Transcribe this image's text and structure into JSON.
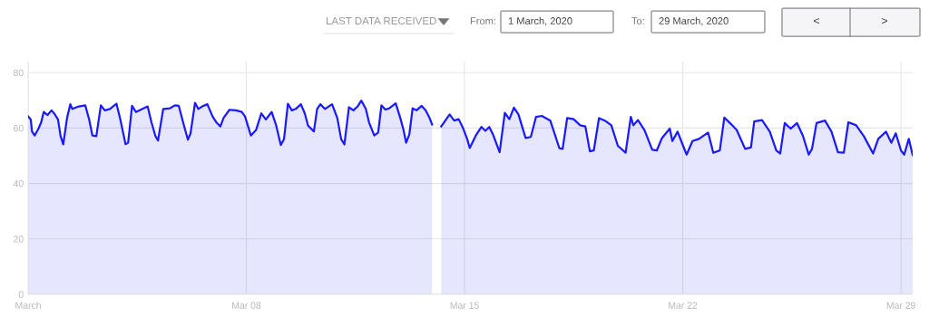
{
  "chart_data": {
    "type": "area",
    "annotations": [
      "LAST DATA RECEIVED",
      "From:",
      "1 March, 2020",
      "To:",
      "29 March, 2020",
      "<",
      ">"
    ],
    "x": [
      "2020-03-01T00:00",
      "2020-03-01T02:00",
      "2020-03-01T03:00",
      "2020-03-01T05:00",
      "2020-03-01T08:00",
      "2020-03-01T10:00",
      "2020-03-01T12:00",
      "2020-03-01T15:00",
      "2020-03-01T18:00",
      "2020-03-01T20:00",
      "2020-03-01T23:00",
      "2020-03-02T01:00",
      "2020-03-02T03:00",
      "2020-03-02T06:00",
      "2020-03-02T08:30",
      "2020-03-02T10:00",
      "2020-03-02T15:00",
      "2020-03-02T20:00",
      "2020-03-02T23:00",
      "2020-03-03T01:30",
      "2020-03-03T04:30",
      "2020-03-03T08:00",
      "2020-03-03T11:00",
      "2020-03-03T15:00",
      "2020-03-03T20:00",
      "2020-03-03T23:00",
      "2020-03-04T03:00",
      "2020-03-04T05:00",
      "2020-03-04T08:00",
      "2020-03-04T11:00",
      "2020-03-04T16:00",
      "2020-03-04T20:00",
      "2020-03-04T23:00",
      "2020-03-05T02:00",
      "2020-03-05T04:00",
      "2020-03-05T08:00",
      "2020-03-05T13:00",
      "2020-03-05T17:00",
      "2020-03-05T20:00",
      "2020-03-06T00:00",
      "2020-03-06T03:00",
      "2020-03-06T05:00",
      "2020-03-06T08:30",
      "2020-03-06T11:00",
      "2020-03-06T14:00",
      "2020-03-06T18:00",
      "2020-03-06T22:00",
      "2020-03-07T01:00",
      "2020-03-07T04:00",
      "2020-03-07T06:30",
      "2020-03-07T11:00",
      "2020-03-07T16:00",
      "2020-03-07T20:30",
      "2020-03-07T23:00",
      "2020-03-08T03:30",
      "2020-03-08T07:30",
      "2020-03-08T11:30",
      "2020-03-08T15:00",
      "2020-03-08T19:30",
      "2020-03-08T23:00",
      "2020-03-09T02:30",
      "2020-03-09T05:00",
      "2020-03-09T08:00",
      "2020-03-09T11:00",
      "2020-03-09T14:00",
      "2020-03-09T18:00",
      "2020-03-09T21:00",
      "2020-03-09T23:30",
      "2020-03-10T04:00",
      "2020-03-10T06:30",
      "2020-03-10T09:00",
      "2020-03-10T12:30",
      "2020-03-10T18:00",
      "2020-03-10T22:00",
      "2020-03-11T01:00",
      "2020-03-11T03:30",
      "2020-03-11T07:00",
      "2020-03-11T10:30",
      "2020-03-11T14:00",
      "2020-03-11T16:30",
      "2020-03-11T20:00",
      "2020-03-11T22:30",
      "2020-03-12T02:30",
      "2020-03-12T05:30",
      "2020-03-12T08:00",
      "2020-03-12T11:00",
      "2020-03-12T14:00",
      "2020-03-12T19:00",
      "2020-03-12T22:30",
      "2020-03-13T01:00",
      "2020-03-13T03:00",
      "2020-03-13T05:30",
      "2020-03-13T08:00",
      "2020-03-13T11:00",
      "2020-03-13T15:00",
      "2020-03-13T18:00",
      "2020-03-13T21:00",
      "2020-03-13T23:00",
      "2020-03-14T02:00",
      "2020-03-14T06:00",
      "2020-03-14T12:30",
      "2020-03-14T16:00",
      "2020-03-14T19:30",
      "2020-03-14T23:00",
      "2020-03-15T02:00",
      "2020-03-15T04:00",
      "2020-03-15T09:00",
      "2020-03-15T13:00",
      "2020-03-15T16:00",
      "2020-03-15T19:00",
      "2020-03-15T22:00",
      "2020-03-16T03:00",
      "2020-03-16T07:00",
      "2020-03-16T10:30",
      "2020-03-16T14:00",
      "2020-03-16T17:30",
      "2020-03-16T23:00",
      "2020-03-17T03:00",
      "2020-03-17T07:00",
      "2020-03-17T11:30",
      "2020-03-17T18:00",
      "2020-03-18T01:00",
      "2020-03-18T03:30",
      "2020-03-18T07:00",
      "2020-03-18T12:00",
      "2020-03-18T17:00",
      "2020-03-18T21:00",
      "2020-03-19T00:30",
      "2020-03-19T03:30",
      "2020-03-19T07:30",
      "2020-03-19T12:00",
      "2020-03-19T17:00",
      "2020-03-19T22:00",
      "2020-03-20T04:00",
      "2020-03-20T08:00",
      "2020-03-20T10:00",
      "2020-03-20T13:30",
      "2020-03-20T18:30",
      "2020-03-21T00:30",
      "2020-03-21T04:00",
      "2020-03-21T08:00",
      "2020-03-21T14:00",
      "2020-03-21T16:00",
      "2020-03-21T20:00",
      "2020-03-22T01:00",
      "2020-03-22T03:00",
      "2020-03-22T07:30",
      "2020-03-22T12:30",
      "2020-03-22T19:30",
      "2020-03-22T23:30",
      "2020-03-23T04:30",
      "2020-03-23T08:00",
      "2020-03-23T13:00",
      "2020-03-23T17:30",
      "2020-03-24T00:00",
      "2020-03-24T04:30",
      "2020-03-24T07:00",
      "2020-03-24T13:00",
      "2020-03-24T19:00",
      "2020-03-25T00:00",
      "2020-03-25T03:00",
      "2020-03-25T06:30",
      "2020-03-25T11:00",
      "2020-03-25T16:00",
      "2020-03-25T20:30",
      "2020-03-26T01:00",
      "2020-03-26T03:30",
      "2020-03-26T07:00",
      "2020-03-26T13:30",
      "2020-03-26T18:30",
      "2020-03-26T23:30",
      "2020-03-27T04:00",
      "2020-03-27T07:30",
      "2020-03-27T13:30",
      "2020-03-27T19:30",
      "2020-03-28T02:30",
      "2020-03-28T06:30",
      "2020-03-28T12:30",
      "2020-03-28T16:30",
      "2020-03-28T20:00",
      "2020-03-29T00:00",
      "2020-03-29T02:30",
      "2020-03-29T06:00",
      "2020-03-29T09:00"
    ],
    "series": [
      {
        "color": "#1a1aff",
        "values": [
          64.2,
          63.1,
          58.8,
          57.3,
          59.8,
          62,
          65.8,
          64.7,
          66.4,
          65.3,
          63.1,
          57.1,
          54.1,
          63.7,
          68.6,
          66.9,
          67.8,
          68.2,
          63.1,
          57.3,
          57.1,
          68.2,
          66.4,
          66.9,
          68.8,
          63.1,
          54.2,
          54.7,
          68,
          65.8,
          66.9,
          67.8,
          62,
          57.1,
          55.5,
          66.9,
          67.1,
          68.2,
          68,
          60.9,
          55.8,
          58,
          69.1,
          66.9,
          67.8,
          68.6,
          64.2,
          62,
          60.6,
          63.7,
          66.6,
          66.4,
          65.8,
          64.2,
          57.3,
          59.3,
          65.3,
          63.1,
          65.8,
          60.9,
          53.9,
          56,
          68.8,
          66.4,
          66.9,
          68.6,
          65.3,
          60.9,
          58.8,
          66.9,
          68.6,
          66.9,
          68.6,
          63.7,
          56,
          54.1,
          67.5,
          66.4,
          68,
          69.9,
          66.9,
          62,
          57.3,
          58.4,
          68.2,
          66.7,
          67.1,
          68.9,
          63.7,
          59.3,
          54.7,
          57.7,
          67.1,
          66.4,
          68,
          66.4,
          63.7,
          61.3,
          null,
          60.6,
          64.9,
          62.7,
          63.2,
          59.8,
          56.1,
          52.8,
          57.6,
          60.4,
          59,
          60.4,
          57.6,
          51.3,
          65.5,
          63.2,
          67.4,
          64.9,
          56.4,
          56.8,
          64,
          64.4,
          62.7,
          52.7,
          52.5,
          63.6,
          63.2,
          61,
          60.6,
          51.6,
          51.9,
          63.6,
          62.7,
          61,
          53.6,
          51.1,
          64,
          61,
          62.9,
          59.3,
          52.2,
          51.9,
          56.4,
          59.8,
          55.3,
          58.7,
          52.7,
          50.4,
          55.3,
          56.1,
          58.4,
          51.1,
          51.9,
          63.8,
          61.5,
          59.3,
          52.5,
          53,
          62.4,
          62.9,
          58.7,
          51.9,
          50.8,
          61.8,
          59.8,
          61.8,
          57.2,
          50.4,
          52.5,
          61.8,
          62.7,
          58.7,
          51.3,
          51.1,
          62.1,
          61,
          57,
          50.8,
          56.1,
          58.7,
          54.7,
          58.1,
          51.9,
          50.4,
          56.1,
          50.2
        ]
      }
    ],
    "xlim": [
      "2020-03-01T00:00",
      "2020-03-29T09:00"
    ],
    "xticks": [
      {
        "value": "2020-03-01",
        "label": "March"
      },
      {
        "value": "2020-03-08",
        "label": "Mar 08"
      },
      {
        "value": "2020-03-15",
        "label": "Mar 15"
      },
      {
        "value": "2020-03-22",
        "label": "Mar 22"
      },
      {
        "value": "2020-03-29",
        "label": "Mar 29"
      }
    ],
    "ylim": [
      0,
      84
    ],
    "yticks": [
      0,
      20,
      40,
      60,
      80
    ],
    "grid": true,
    "legend": false
  }
}
